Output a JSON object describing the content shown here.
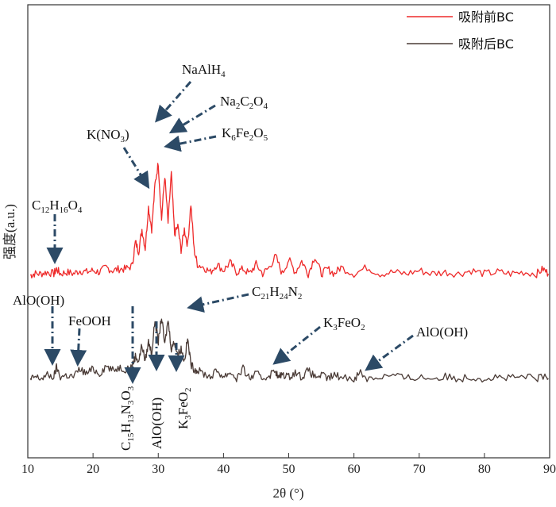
{
  "chart_data": {
    "type": "line",
    "xlabel": "2θ (°)",
    "ylabel": "强度(a.u.)",
    "xlim": [
      10,
      90
    ],
    "xticks": [
      10,
      20,
      30,
      40,
      50,
      60,
      70,
      80,
      90
    ],
    "yticks_shown": false,
    "grid": false,
    "legend_position": "top-right",
    "colors": {
      "before": "#ee2a2a",
      "after": "#4a3b36",
      "arrow": "#2c4a66"
    },
    "series": [
      {
        "id": "before",
        "name": "吸附前BC",
        "x": [
          10.4,
          11,
          12,
          13,
          14,
          14.4,
          15,
          16,
          17,
          18,
          19,
          20,
          21,
          22,
          23,
          24,
          25,
          26,
          26.5,
          27,
          27.5,
          28,
          28.5,
          29,
          29.5,
          30,
          30.5,
          31,
          31.5,
          32,
          32.5,
          33,
          33.5,
          34,
          34.5,
          35,
          35.5,
          36,
          37,
          38,
          39,
          40,
          41,
          42,
          43,
          44,
          45,
          46,
          47,
          48,
          49,
          50,
          51,
          52,
          53,
          54,
          55,
          56,
          57,
          58,
          60,
          62,
          64,
          66,
          68,
          70,
          72,
          74,
          76,
          78,
          80,
          82,
          84,
          86,
          88,
          89,
          89.8
        ],
        "y": [
          0.29,
          0.3,
          0.3,
          0.31,
          0.3,
          0.33,
          0.3,
          0.31,
          0.3,
          0.32,
          0.31,
          0.32,
          0.31,
          0.34,
          0.32,
          0.33,
          0.33,
          0.35,
          0.5,
          0.44,
          0.58,
          0.46,
          0.72,
          0.58,
          0.86,
          1.0,
          0.64,
          0.92,
          0.62,
          0.93,
          0.55,
          0.6,
          0.45,
          0.58,
          0.48,
          0.74,
          0.45,
          0.36,
          0.34,
          0.31,
          0.36,
          0.32,
          0.37,
          0.31,
          0.33,
          0.3,
          0.36,
          0.3,
          0.34,
          0.41,
          0.3,
          0.39,
          0.31,
          0.38,
          0.3,
          0.41,
          0.3,
          0.33,
          0.3,
          0.34,
          0.3,
          0.34,
          0.3,
          0.31,
          0.3,
          0.32,
          0.3,
          0.31,
          0.3,
          0.32,
          0.3,
          0.31,
          0.3,
          0.31,
          0.3,
          0.33,
          0.3
        ]
      },
      {
        "id": "after",
        "name": "吸附后BC",
        "x": [
          10.4,
          11,
          12,
          13,
          14,
          14.4,
          15,
          16,
          17,
          18,
          19,
          20,
          21,
          22,
          23,
          24,
          25,
          26,
          26.5,
          27,
          27.5,
          28,
          28.5,
          29,
          29.5,
          30,
          30.5,
          31,
          31.5,
          32,
          32.5,
          33,
          33.5,
          34,
          34.5,
          35,
          35.5,
          36,
          37,
          38,
          39,
          40,
          41,
          42,
          43,
          44,
          45,
          46,
          47,
          48,
          48.4,
          49,
          50,
          51,
          52,
          53,
          54,
          55,
          56,
          57,
          58,
          60,
          61,
          62,
          64,
          66,
          68,
          70,
          72,
          74,
          76,
          78,
          80,
          82,
          84,
          86,
          88,
          89,
          89.8
        ],
        "y": [
          -0.12,
          -0.1,
          -0.11,
          -0.09,
          -0.1,
          -0.04,
          -0.1,
          -0.09,
          -0.1,
          -0.05,
          -0.08,
          -0.05,
          -0.08,
          -0.03,
          -0.06,
          -0.04,
          -0.05,
          -0.03,
          0.03,
          0.0,
          0.1,
          0.0,
          0.12,
          0.05,
          0.26,
          0.12,
          0.28,
          0.1,
          0.26,
          0.08,
          0.12,
          0.04,
          0.08,
          0.0,
          0.14,
          -0.02,
          -0.05,
          -0.06,
          -0.08,
          -0.1,
          -0.06,
          -0.1,
          -0.07,
          -0.11,
          -0.05,
          -0.11,
          -0.08,
          -0.11,
          -0.09,
          -0.06,
          -0.11,
          -0.08,
          -0.1,
          -0.07,
          -0.1,
          -0.06,
          -0.1,
          -0.09,
          -0.11,
          -0.09,
          -0.1,
          -0.11,
          -0.07,
          -0.11,
          -0.1,
          -0.09,
          -0.11,
          -0.1,
          -0.11,
          -0.1,
          -0.11,
          -0.1,
          -0.11,
          -0.1,
          -0.11,
          -0.1,
          -0.11,
          -0.1,
          -0.11
        ]
      }
    ],
    "annotations": [
      {
        "id": "naalh4",
        "parts": [
          [
            "NaAlH",
            "n"
          ],
          [
            "4",
            "s"
          ]
        ]
      },
      {
        "id": "na2c2o4",
        "parts": [
          [
            "Na",
            "n"
          ],
          [
            "2",
            "s"
          ],
          [
            "C",
            "n"
          ],
          [
            "2",
            "s"
          ],
          [
            "O",
            "n"
          ],
          [
            "4",
            "s"
          ]
        ]
      },
      {
        "id": "kno3",
        "parts": [
          [
            "K(NO",
            "n"
          ],
          [
            "3",
            "s"
          ],
          [
            ")",
            "n"
          ]
        ]
      },
      {
        "id": "k6fe2o5",
        "parts": [
          [
            "K",
            "n"
          ],
          [
            "6",
            "s"
          ],
          [
            "Fe",
            "n"
          ],
          [
            "2",
            "s"
          ],
          [
            "O",
            "n"
          ],
          [
            "5",
            "s"
          ]
        ]
      },
      {
        "id": "c12h16o4",
        "parts": [
          [
            "C",
            "n"
          ],
          [
            "12",
            "s"
          ],
          [
            "H",
            "n"
          ],
          [
            "16",
            "s"
          ],
          [
            "O",
            "n"
          ],
          [
            "4",
            "s"
          ]
        ]
      },
      {
        "id": "c21h24n2",
        "parts": [
          [
            "C",
            "n"
          ],
          [
            "21",
            "s"
          ],
          [
            "H",
            "n"
          ],
          [
            "24",
            "s"
          ],
          [
            "N",
            "n"
          ],
          [
            "2",
            "s"
          ]
        ]
      },
      {
        "id": "aloh-left",
        "parts": [
          [
            "AlO(OH)",
            "n"
          ]
        ]
      },
      {
        "id": "feooh",
        "parts": [
          [
            "FeOOH",
            "n"
          ]
        ]
      },
      {
        "id": "k3feo2-right",
        "parts": [
          [
            "K",
            "n"
          ],
          [
            "3",
            "s"
          ],
          [
            "FeO",
            "n"
          ],
          [
            "2",
            "s"
          ]
        ]
      },
      {
        "id": "aloh-right",
        "parts": [
          [
            "AlO(OH)",
            "n"
          ]
        ]
      },
      {
        "id": "c15h13n3o3",
        "parts": [
          [
            "C",
            "n"
          ],
          [
            "15",
            "s"
          ],
          [
            "H",
            "n"
          ],
          [
            "13",
            "s"
          ],
          [
            "N",
            "n"
          ],
          [
            "3",
            "s"
          ],
          [
            "O",
            "n"
          ],
          [
            "3",
            "s"
          ]
        ]
      },
      {
        "id": "aloh-vertical",
        "parts": [
          [
            "AlO(OH)",
            "n"
          ]
        ]
      },
      {
        "id": "k3feo2-vertical",
        "parts": [
          [
            "K",
            "n"
          ],
          [
            "3",
            "s"
          ],
          [
            "FeO",
            "n"
          ],
          [
            "2",
            "s"
          ]
        ]
      }
    ]
  }
}
